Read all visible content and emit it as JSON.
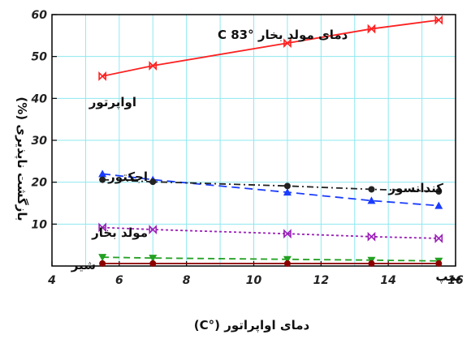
{
  "chart_data": {
    "type": "line",
    "title": "",
    "annotation": "دمای مولد بخار °C 83",
    "xlabel": "دمای اواپراتور (°C)",
    "ylabel": "بازگشت ناپذیری (%)",
    "xlim": [
      4,
      16
    ],
    "ylim": [
      0,
      60
    ],
    "xticks": [
      4,
      6,
      8,
      10,
      12,
      14,
      16
    ],
    "yticks": [
      10,
      20,
      30,
      40,
      50,
      60
    ],
    "grid": true,
    "x": [
      5.5,
      7,
      11,
      13.5,
      15.5
    ],
    "series": [
      {
        "name": "اواپرتور",
        "color": "#ff2020",
        "marker": "bowtie",
        "dash": "",
        "values": [
          45.3,
          47.8,
          53.2,
          56.6,
          58.7
        ]
      },
      {
        "name": "اجکتور",
        "color": "#1a3cff",
        "marker": "triangle",
        "dash": "10,6",
        "values": [
          22.0,
          20.6,
          17.6,
          15.6,
          14.4
        ]
      },
      {
        "name": "کندانسور",
        "color": "#222222",
        "marker": "circle",
        "dash": "8,4,2,4",
        "values": [
          20.6,
          20.1,
          19.1,
          18.3,
          17.8
        ]
      },
      {
        "name": "مولد بخار",
        "color": "#9b1fb8",
        "marker": "bowtie",
        "dash": "3,3",
        "values": [
          9.2,
          8.7,
          7.7,
          7.0,
          6.6
        ]
      },
      {
        "name": "شیر",
        "color": "#22a022",
        "marker": "triangle-down",
        "dash": "8,5",
        "values": [
          2.1,
          1.9,
          1.6,
          1.4,
          1.2
        ]
      },
      {
        "name": "پمپ",
        "color": "#8b0000",
        "marker": "circle",
        "dash": "",
        "values": [
          0.6,
          0.6,
          0.6,
          0.6,
          0.6
        ]
      }
    ]
  }
}
